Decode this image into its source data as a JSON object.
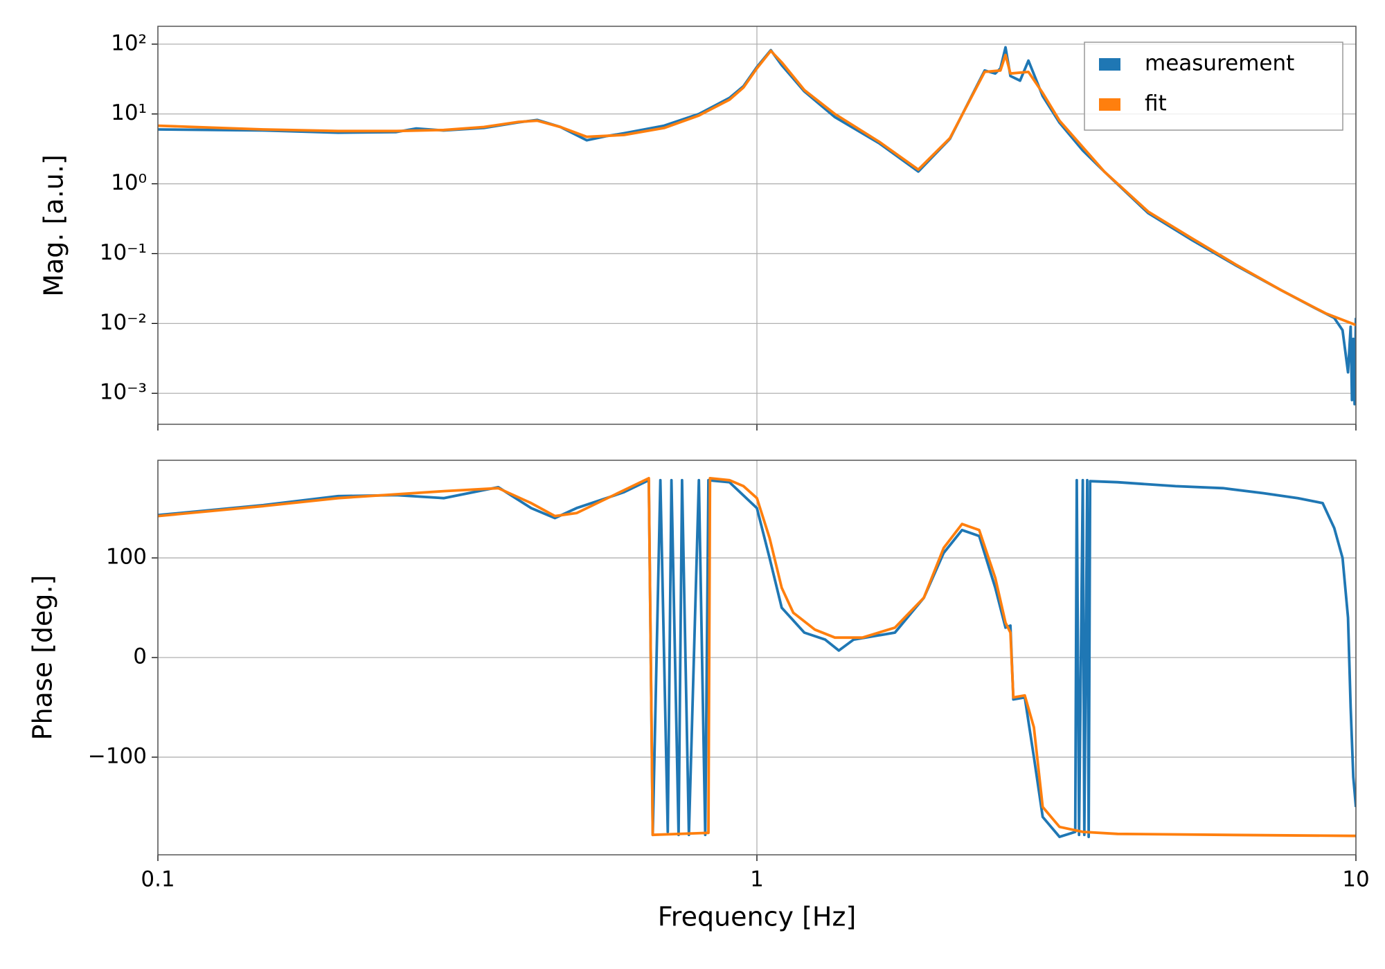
{
  "chart_data": [
    {
      "type": "line",
      "ylabel": "Mag. [a.u.]",
      "log_x": true,
      "log_y": true,
      "grid": true,
      "legend": "upper right",
      "xlim": [
        0.1,
        10
      ],
      "ylim": [
        0.00036,
        180
      ],
      "yticks": [
        {
          "value": 100,
          "label": "10²"
        },
        {
          "value": 10,
          "label": "10¹"
        },
        {
          "value": 1,
          "label": "10⁰"
        },
        {
          "value": 0.1,
          "label": "10⁻¹"
        },
        {
          "value": 0.01,
          "label": "10⁻²"
        },
        {
          "value": 0.001,
          "label": "10⁻³"
        }
      ],
      "series": [
        {
          "name": "measurement",
          "color": "#1f77b4",
          "x": [
            0.1,
            0.15,
            0.2,
            0.25,
            0.27,
            0.3,
            0.35,
            0.4,
            0.43,
            0.47,
            0.52,
            0.56,
            0.6,
            0.7,
            0.8,
            0.9,
            0.95,
            1.0,
            1.055,
            1.1,
            1.2,
            1.35,
            1.6,
            1.86,
            2.1,
            2.4,
            2.5,
            2.55,
            2.6,
            2.65,
            2.75,
            2.84,
            3.0,
            3.2,
            3.5,
            3.8,
            4.5,
            5.3,
            6.3,
            7.5,
            8.5,
            9.2,
            9.5,
            9.7,
            9.8,
            9.85,
            9.9,
            9.95,
            10
          ],
          "values": [
            6.0,
            5.8,
            5.4,
            5.5,
            6.2,
            5.8,
            6.3,
            7.6,
            8.2,
            6.5,
            4.2,
            4.8,
            5.3,
            6.8,
            10,
            17,
            25,
            47,
            82,
            50,
            21,
            9,
            3.8,
            1.5,
            4.4,
            42,
            38,
            45,
            90,
            35,
            30,
            58,
            18,
            7.5,
            3,
            1.5,
            0.38,
            0.16,
            0.068,
            0.03,
            0.017,
            0.012,
            0.008,
            0.002,
            0.009,
            0.0008,
            0.006,
            0.0007,
            0.012
          ]
        },
        {
          "name": "fit",
          "color": "#ff7f0e",
          "x": [
            0.1,
            0.15,
            0.2,
            0.25,
            0.3,
            0.35,
            0.4,
            0.43,
            0.47,
            0.52,
            0.6,
            0.7,
            0.8,
            0.9,
            0.95,
            1.0,
            1.055,
            1.1,
            1.2,
            1.35,
            1.6,
            1.86,
            2.1,
            2.4,
            2.55,
            2.6,
            2.65,
            2.84,
            3.0,
            3.2,
            3.8,
            4.5,
            5.3,
            6.3,
            7.5,
            8.9,
            10
          ],
          "values": [
            6.8,
            6.0,
            5.7,
            5.7,
            5.9,
            6.5,
            7.7,
            8.0,
            6.5,
            4.7,
            5.0,
            6.3,
            9.5,
            16,
            24,
            45,
            80,
            55,
            22,
            10,
            4,
            1.6,
            4.5,
            40,
            42,
            70,
            38,
            40,
            20,
            8,
            1.5,
            0.4,
            0.17,
            0.07,
            0.03,
            0.014,
            0.0095
          ]
        }
      ]
    },
    {
      "type": "line",
      "ylabel": "Phase [deg.]",
      "xlabel": "Frequency [Hz]",
      "log_x": true,
      "log_y": false,
      "grid": true,
      "xlim": [
        0.1,
        10
      ],
      "ylim": [
        -198,
        198
      ],
      "xticks": [
        {
          "value": 0.1,
          "label": "0.1"
        },
        1,
        10
      ],
      "yticks": [
        100,
        0,
        {
          "value": -100,
          "label": "−100"
        }
      ],
      "series": [
        {
          "color": "#1f77b4",
          "x": [
            0.1,
            0.15,
            0.2,
            0.25,
            0.3,
            0.37,
            0.42,
            0.46,
            0.5,
            0.6,
            0.66,
            0.67,
            0.69,
            0.71,
            0.72,
            0.74,
            0.75,
            0.77,
            0.8,
            0.82,
            0.83,
            0.9,
            1.0,
            1.05,
            1.1,
            1.2,
            1.3,
            1.37,
            1.45,
            1.7,
            1.9,
            2.05,
            2.2,
            2.35,
            2.5,
            2.6,
            2.65,
            2.68,
            2.8,
            2.9,
            3.0,
            3.2,
            3.4,
            3.42,
            3.45,
            3.5,
            3.52,
            3.56,
            3.58,
            3.6,
            4,
            5,
            6,
            7,
            8,
            8.8,
            9.2,
            9.5,
            9.7,
            9.8,
            9.9,
            10
          ],
          "values": [
            143,
            153,
            162,
            163,
            160,
            171,
            150,
            140,
            150,
            166,
            178,
            -178,
            178,
            -175,
            178,
            -178,
            178,
            -178,
            178,
            -178,
            178,
            176,
            150,
            100,
            50,
            25,
            18,
            7,
            18,
            25,
            60,
            105,
            128,
            122,
            70,
            30,
            32,
            -42,
            -40,
            -100,
            -160,
            -180,
            -175,
            178,
            -178,
            178,
            -178,
            178,
            -180,
            177,
            176,
            172,
            170,
            165,
            160,
            155,
            130,
            100,
            40,
            -50,
            -120,
            -150
          ]
        },
        {
          "color": "#ff7f0e",
          "x": [
            0.1,
            0.15,
            0.2,
            0.3,
            0.37,
            0.42,
            0.46,
            0.5,
            0.6,
            0.66,
            0.67,
            0.83,
            0.835,
            0.9,
            0.95,
            1.0,
            1.05,
            1.1,
            1.15,
            1.25,
            1.35,
            1.5,
            1.7,
            1.9,
            2.05,
            2.2,
            2.35,
            2.5,
            2.6,
            2.65,
            2.68,
            2.8,
            2.9,
            3.0,
            3.2,
            3.5,
            4,
            6,
            10
          ],
          "values": [
            142,
            152,
            160,
            167,
            170,
            155,
            142,
            145,
            168,
            180,
            -178,
            -176,
            180,
            178,
            172,
            160,
            120,
            70,
            45,
            28,
            20,
            20,
            30,
            60,
            110,
            134,
            128,
            80,
            35,
            25,
            -40,
            -38,
            -70,
            -150,
            -170,
            -175,
            -177,
            -178,
            -179
          ]
        }
      ]
    }
  ]
}
